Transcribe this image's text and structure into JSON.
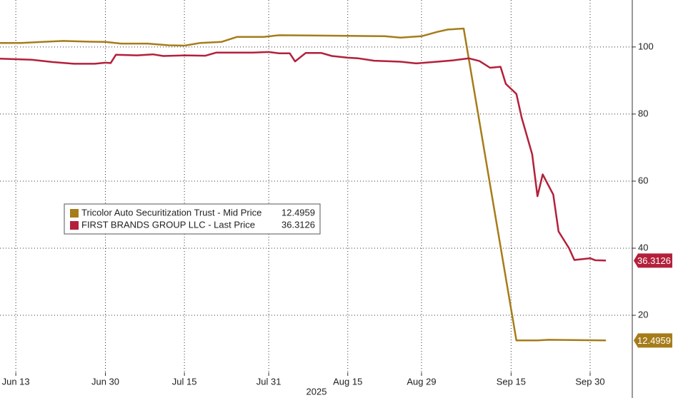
{
  "chart_data": {
    "type": "line",
    "xlabel": "2025",
    "xlim": [
      "Jun 10",
      "Oct 8"
    ],
    "xticks": [
      "Jun 13",
      "Jun 30",
      "Jul 15",
      "Jul 31",
      "Aug 15",
      "Aug 29",
      "Sep 15",
      "Sep 30"
    ],
    "ylim": [
      3,
      114
    ],
    "yticks": [
      20,
      40,
      60,
      80,
      100
    ],
    "grid": true,
    "legend": "left",
    "series": [
      {
        "name": "Tricolor Auto Securitization Trust - Mid Price",
        "color": "#a67c1a",
        "x": [
          "Jun 10",
          "Jun 14",
          "Jun 18",
          "Jun 22",
          "Jun 26",
          "Jun 30",
          "Jul 3",
          "Jul 8",
          "Jul 12",
          "Jul 15",
          "Jul 18",
          "Jul 22",
          "Jul 25",
          "Jul 30",
          "Aug 2",
          "Aug 8",
          "Aug 15",
          "Aug 22",
          "Aug 25",
          "Aug 29",
          "Sep 1",
          "Sep 3",
          "Sep 6",
          "Sep 16",
          "Sep 20",
          "Sep 22",
          "Oct 3"
        ],
        "values": [
          101.2,
          101.2,
          101.5,
          101.8,
          101.6,
          101.5,
          101,
          101,
          100.5,
          100.4,
          101.2,
          101.5,
          103,
          103,
          103.5,
          103.4,
          103.3,
          103.2,
          102.8,
          103.2,
          104.5,
          105.2,
          105.5,
          12.5,
          12.5,
          12.7,
          12.4959
        ]
      },
      {
        "name": "FIRST BRANDS GROUP LLC - Last Price",
        "color": "#b3203a",
        "x": [
          "Jun 10",
          "Jun 16",
          "Jun 20",
          "Jun 24",
          "Jun 28",
          "Jun 30",
          "Jul 1",
          "Jul 2",
          "Jul 6",
          "Jul 9",
          "Jul 11",
          "Jul 15",
          "Jul 19",
          "Jul 21",
          "Jul 28",
          "Jul 31",
          "Aug 2",
          "Aug 4",
          "Aug 5",
          "Aug 7",
          "Aug 10",
          "Aug 12",
          "Aug 15",
          "Aug 17",
          "Aug 20",
          "Aug 25",
          "Aug 28",
          "Sep 1",
          "Sep 4",
          "Sep 7",
          "Sep 9",
          "Sep 11",
          "Sep 13",
          "Sep 14",
          "Sep 16",
          "Sep 17",
          "Sep 19",
          "Sep 20",
          "Sep 21",
          "Sep 23",
          "Sep 24",
          "Sep 26",
          "Sep 27",
          "Sep 30",
          "Oct 1",
          "Oct 3"
        ],
        "values": [
          96.5,
          96.2,
          95.5,
          95,
          95,
          95.3,
          95.2,
          97.7,
          97.5,
          97.8,
          97.3,
          97.5,
          97.4,
          98.3,
          98.3,
          98.5,
          98.1,
          98.1,
          95.7,
          98.2,
          98.2,
          97.3,
          96.8,
          96.6,
          95.9,
          95.6,
          95.1,
          95.6,
          96,
          96.6,
          95.8,
          93.8,
          94.1,
          89,
          86,
          79,
          68,
          55.5,
          62,
          56,
          45,
          40,
          36.5,
          37,
          36.4,
          36.3126
        ]
      }
    ]
  }
}
